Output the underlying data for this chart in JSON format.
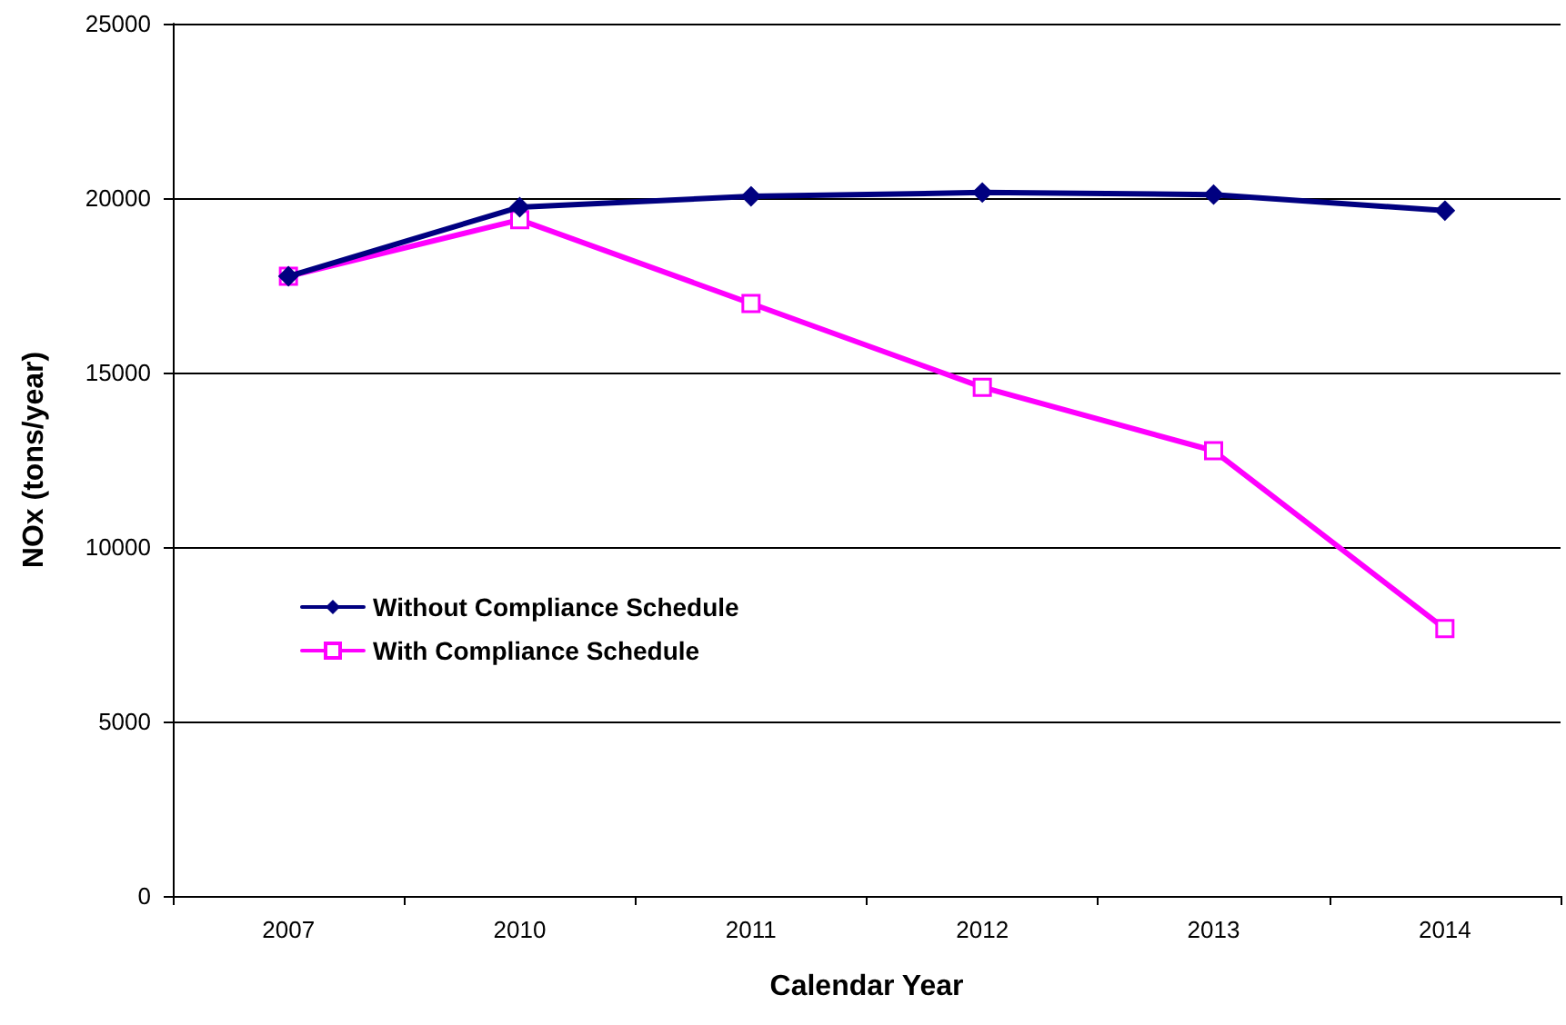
{
  "chart_data": {
    "type": "line",
    "xlabel": "Calendar Year",
    "ylabel": "NOx (tons/year)",
    "categories": [
      "2007",
      "2010",
      "2011",
      "2012",
      "2013",
      "2014"
    ],
    "series": [
      {
        "name": "Without Compliance Schedule",
        "color": "#000080",
        "marker": "diamond",
        "values": [
          17760,
          19740,
          20050,
          20160,
          20100,
          19640
        ]
      },
      {
        "name": "With Compliance Schedule",
        "color": "#ff00ff",
        "marker": "square",
        "values": [
          17760,
          19380,
          16980,
          14580,
          12760,
          7660
        ]
      }
    ],
    "ylim": [
      0,
      25000
    ],
    "yticks": [
      0,
      5000,
      10000,
      15000,
      20000,
      25000
    ],
    "grid": "y",
    "legend": "bottom left"
  }
}
